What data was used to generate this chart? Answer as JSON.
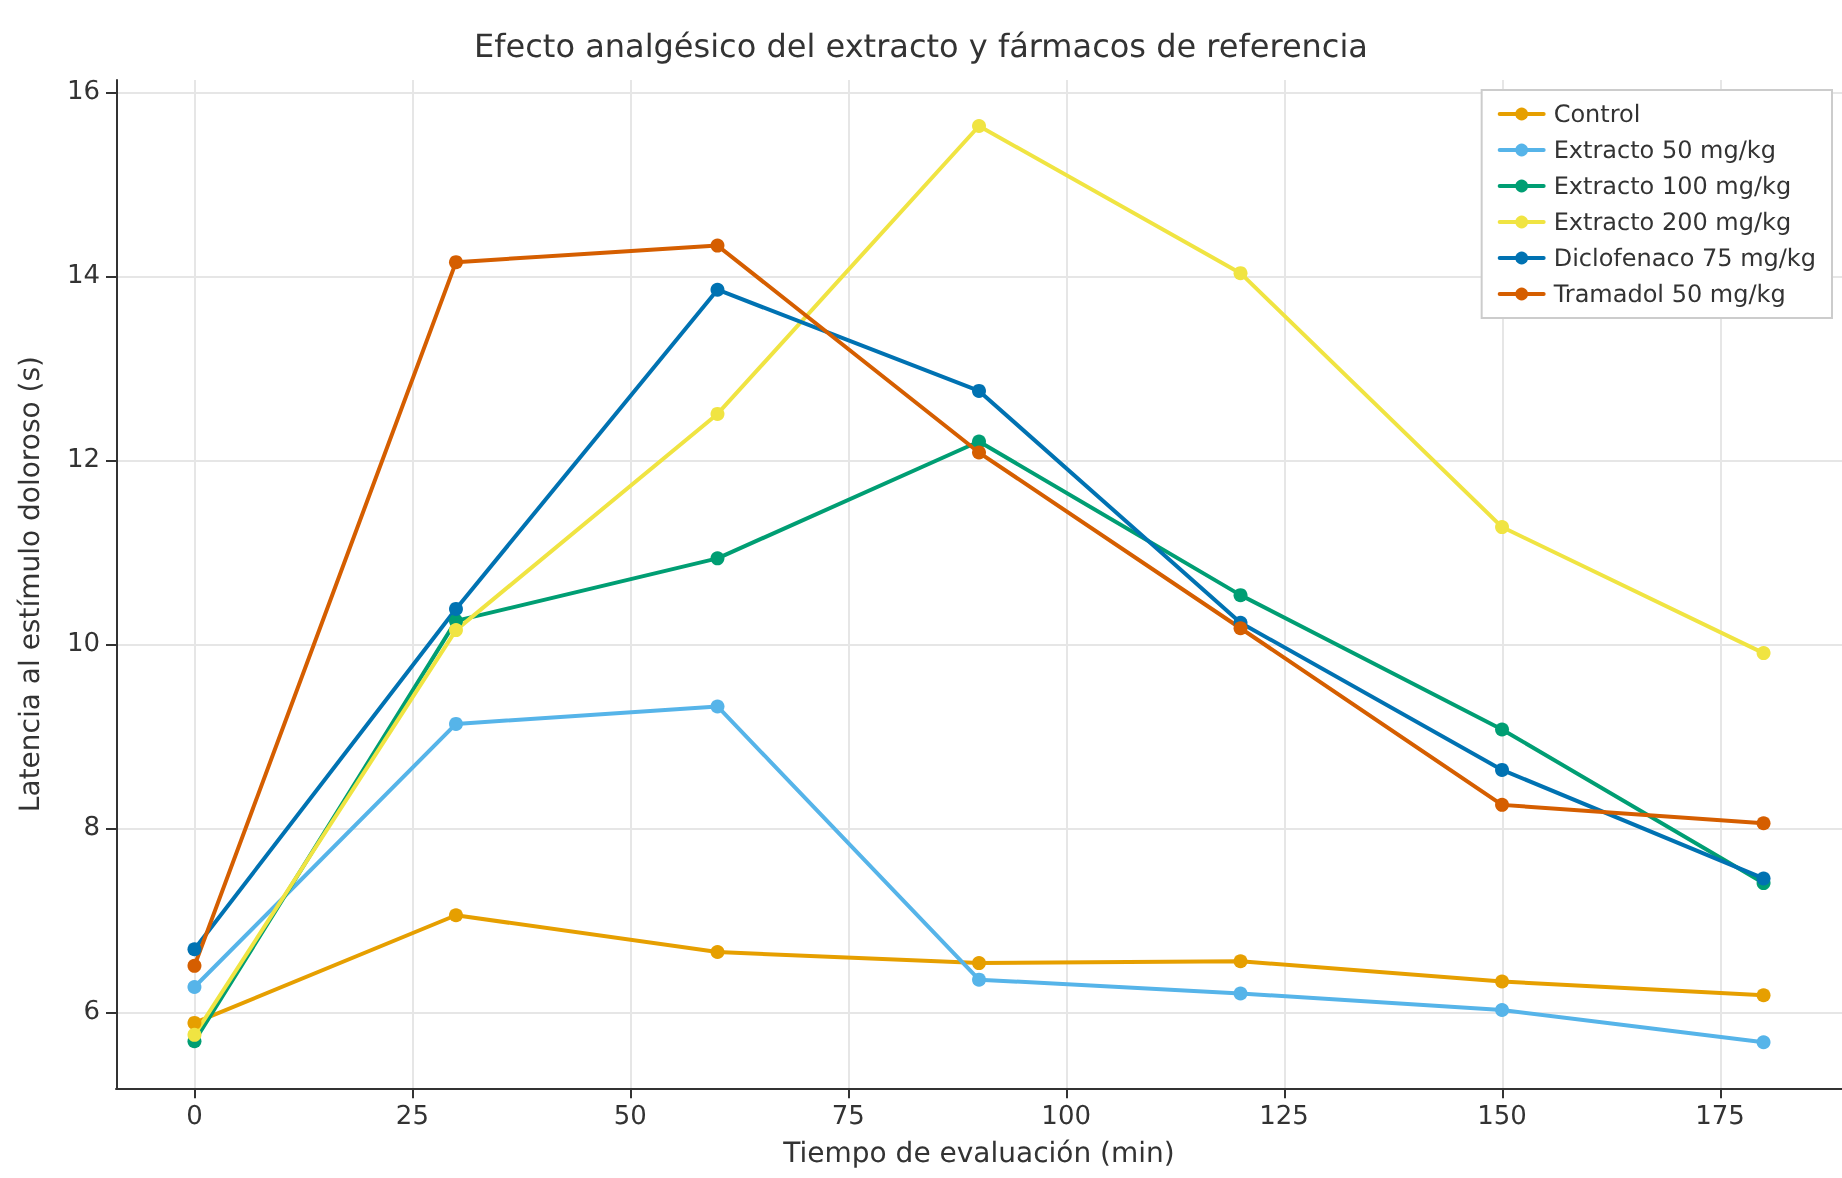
{
  "chart_data": {
    "type": "line",
    "title": "Efecto analgésico del extracto y fármacos de referencia",
    "xlabel": "Tiempo de evaluación (min)",
    "ylabel": "Latencia al estímulo doloroso (s)",
    "x": [
      0,
      30,
      60,
      90,
      120,
      150,
      180
    ],
    "series": [
      {
        "name": "Control",
        "color": "#e69f00",
        "values": [
          5.88,
          7.05,
          6.65,
          6.53,
          6.55,
          6.33,
          6.18
        ]
      },
      {
        "name": "Extracto 50 mg/kg",
        "color": "#56b4e9",
        "values": [
          6.27,
          9.13,
          9.32,
          6.35,
          6.2,
          6.02,
          5.67
        ]
      },
      {
        "name": "Extracto 100 mg/kg",
        "color": "#009e73",
        "values": [
          5.68,
          10.25,
          10.93,
          12.2,
          10.53,
          9.07,
          7.4
        ]
      },
      {
        "name": "Extracto 200 mg/kg",
        "color": "#f0e442",
        "values": [
          5.75,
          10.15,
          12.5,
          15.63,
          14.03,
          11.27,
          9.9
        ]
      },
      {
        "name": "Diclofenaco 75 mg/kg",
        "color": "#0072b2",
        "values": [
          6.68,
          10.38,
          13.85,
          12.75,
          10.23,
          8.63,
          7.45
        ]
      },
      {
        "name": "Tramadol 50 mg/kg",
        "color": "#d55e00",
        "values": [
          6.5,
          14.15,
          14.33,
          12.08,
          10.17,
          8.25,
          8.05
        ]
      }
    ],
    "xlim": [
      -9,
      189
    ],
    "xticks": [
      0,
      25,
      50,
      75,
      100,
      125,
      150,
      175
    ],
    "ylim": [
      5.17,
      16.13
    ],
    "yticks": [
      6,
      8,
      10,
      12,
      14,
      16
    ],
    "grid": true,
    "legend": "top right",
    "marker": "circle",
    "line_style": "solid"
  }
}
